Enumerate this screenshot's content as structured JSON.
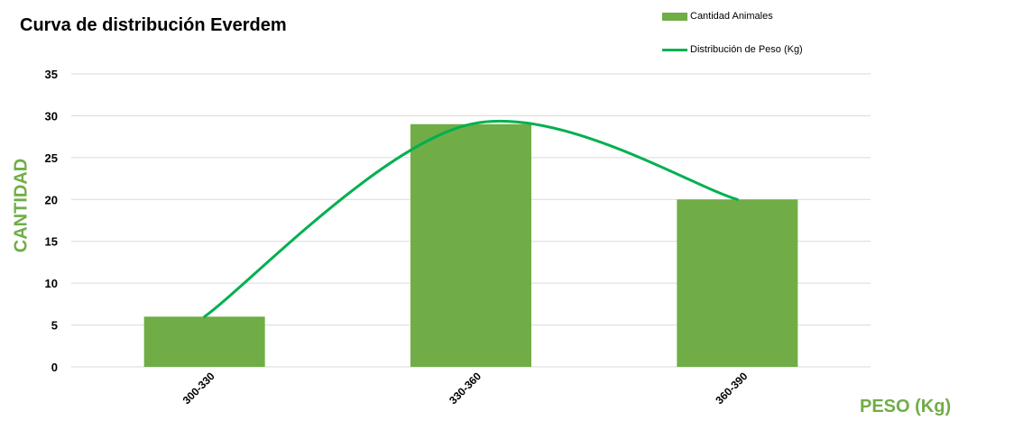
{
  "chart_data": {
    "type": "bar",
    "title": "Curva de distribución Everdem",
    "xlabel": "PESO (Kg)",
    "ylabel": "CANTIDAD",
    "categories": [
      "300-330",
      "330-360",
      "360-390"
    ],
    "series": [
      {
        "name": "Cantidad Animales",
        "type": "bar",
        "values": [
          6,
          29,
          20
        ]
      },
      {
        "name": "Distribución de Peso (Kg)",
        "type": "line",
        "smooth": true,
        "values": [
          6,
          29,
          20
        ]
      }
    ],
    "ylim": [
      0,
      35
    ],
    "yticks": [
      "0",
      "5",
      "10",
      "15",
      "20",
      "25",
      "30",
      "35"
    ],
    "grid": true,
    "legend": "top-right"
  },
  "colors": {
    "bar": "#70ad47",
    "line": "#00b050",
    "axis_label": "#70ad47",
    "grid": "#d9d9d9"
  }
}
